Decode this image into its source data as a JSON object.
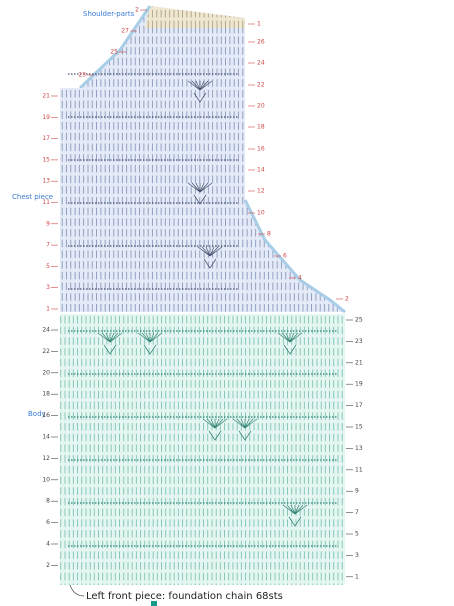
{
  "labels": {
    "shoulder": "Shoulder-parts",
    "chest": "Chest piece",
    "body": "Body",
    "foundation": "Left front piece: foundation chain 68sts"
  },
  "rows": {
    "shoulder_left": [
      "2",
      "27",
      "25",
      "23"
    ],
    "chest_left": [
      "21",
      "19",
      "17",
      "15",
      "13",
      "11",
      "9",
      "7",
      "5",
      "3",
      "1"
    ],
    "chest_right": [
      "1",
      "26",
      "24",
      "22",
      "20",
      "18",
      "16",
      "14",
      "12",
      "10",
      "8",
      "6",
      "4",
      "2"
    ],
    "body_left": [
      "24",
      "22",
      "20",
      "18",
      "16",
      "14",
      "12",
      "10",
      "8",
      "6",
      "4",
      "2"
    ],
    "body_right": [
      "25",
      "23",
      "21",
      "19",
      "17",
      "15",
      "13",
      "11",
      "9",
      "7",
      "5",
      "3",
      "1"
    ]
  }
}
